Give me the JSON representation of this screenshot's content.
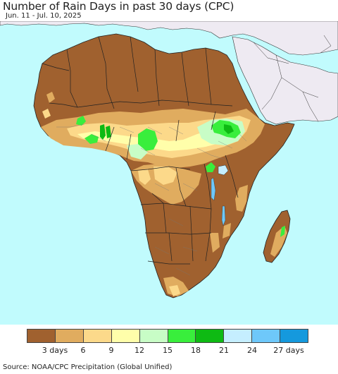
{
  "title": "Number of Rain Days in past 30 days (CPC)",
  "date_range": "Jun. 11 - Jul. 10, 2025",
  "legend": {
    "colors": [
      "#a0612f",
      "#e0ac5f",
      "#fcd98a",
      "#fffeaa",
      "#c8fdc6",
      "#39ee3c",
      "#0eba13",
      "#c5eeff",
      "#6ec8fa",
      "#1599dd"
    ],
    "labels": [
      "3 days",
      "6",
      "9",
      "12",
      "15",
      "18",
      "21",
      "24",
      "27 days"
    ]
  },
  "source": "Source: NOAA/CPC Precipitation (Global Unified)",
  "map_colors": {
    "ocean": "#c1fbfd",
    "outside_region": "#eeeaf2",
    "border": "#222222",
    "admin_border": "#777777"
  }
}
